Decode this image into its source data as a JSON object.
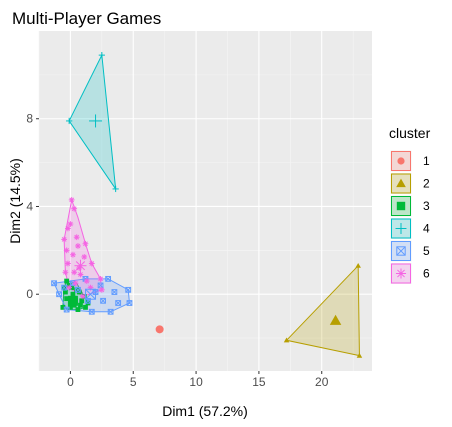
{
  "chart_data": {
    "type": "scatter",
    "title": "Multi-Player Games",
    "xlabel": "Dim1 (57.2%)",
    "ylabel": "Dim2 (14.5%)",
    "xlim": [
      -2.5,
      24
    ],
    "ylim": [
      -3.5,
      12
    ],
    "xticks": [
      0,
      5,
      10,
      15,
      20
    ],
    "yticks": [
      0,
      4,
      8
    ],
    "grid": true,
    "legend": {
      "title": "cluster",
      "position": "right"
    },
    "clusters": [
      {
        "name": "1",
        "color": "#F8766D",
        "shape": "circle",
        "points": [
          [
            7.1,
            -1.6
          ]
        ],
        "hull": [],
        "center": [
          7.1,
          -1.6
        ]
      },
      {
        "name": "2",
        "color": "#B79F00",
        "shape": "triangle",
        "points": [
          [
            17.2,
            -2.1
          ],
          [
            22.9,
            1.3
          ],
          [
            23.0,
            -2.8
          ]
        ],
        "hull": [
          [
            17.2,
            -2.1
          ],
          [
            22.9,
            1.3
          ],
          [
            23.0,
            -2.8
          ]
        ],
        "center": [
          21.1,
          -1.2
        ]
      },
      {
        "name": "3",
        "color": "#00BA38",
        "shape": "square",
        "points": [
          [
            -0.6,
            -0.6
          ],
          [
            -0.5,
            0.3
          ],
          [
            -0.3,
            0.6
          ],
          [
            0.1,
            0.3
          ],
          [
            0.5,
            0.2
          ],
          [
            1.1,
            -0.1
          ],
          [
            1.4,
            -0.4
          ],
          [
            1.2,
            -0.6
          ],
          [
            0.6,
            -0.7
          ],
          [
            0.0,
            -0.6
          ],
          [
            -0.3,
            -0.2
          ],
          [
            0.2,
            0.0
          ],
          [
            0.4,
            -0.3
          ],
          [
            0.8,
            -0.5
          ],
          [
            -0.1,
            0.4
          ],
          [
            0.3,
            -0.5
          ],
          [
            -0.4,
            0.1
          ],
          [
            0.7,
            0.1
          ],
          [
            0.9,
            -0.3
          ],
          [
            0.0,
            -0.2
          ]
        ],
        "hull": [
          [
            -0.6,
            -0.6
          ],
          [
            -0.5,
            0.3
          ],
          [
            -0.3,
            0.6
          ],
          [
            0.5,
            0.5
          ],
          [
            1.1,
            -0.1
          ],
          [
            1.4,
            -0.4
          ],
          [
            1.2,
            -0.6
          ],
          [
            0.6,
            -0.7
          ],
          [
            0.0,
            -0.7
          ]
        ],
        "center": [
          0.2,
          -0.3
        ]
      },
      {
        "name": "4",
        "color": "#00BFC4",
        "shape": "plus",
        "points": [
          [
            -0.1,
            7.9
          ],
          [
            2.5,
            10.9
          ],
          [
            3.6,
            4.8
          ]
        ],
        "hull": [
          [
            -0.1,
            7.9
          ],
          [
            2.5,
            10.9
          ],
          [
            3.6,
            4.8
          ]
        ],
        "center": [
          2.0,
          7.9
        ]
      },
      {
        "name": "5",
        "color": "#619CFF",
        "shape": "square-cross",
        "points": [
          [
            -1.3,
            0.5
          ],
          [
            1.2,
            0.7
          ],
          [
            3.0,
            0.7
          ],
          [
            4.6,
            0.2
          ],
          [
            4.7,
            -0.4
          ],
          [
            3.2,
            -0.8
          ],
          [
            1.7,
            -0.8
          ],
          [
            -0.3,
            -0.7
          ],
          [
            -0.9,
            0.0
          ],
          [
            0.6,
            0.2
          ],
          [
            2.0,
            0.1
          ],
          [
            2.6,
            -0.3
          ],
          [
            1.4,
            -0.3
          ],
          [
            3.8,
            -0.4
          ],
          [
            0.2,
            0.5
          ],
          [
            -0.5,
            0.3
          ],
          [
            2.4,
            0.4
          ],
          [
            3.5,
            0.1
          ]
        ],
        "hull": [
          [
            -1.3,
            0.5
          ],
          [
            1.2,
            0.7
          ],
          [
            3.0,
            0.7
          ],
          [
            4.6,
            0.2
          ],
          [
            4.7,
            -0.4
          ],
          [
            3.2,
            -0.8
          ],
          [
            1.7,
            -0.8
          ],
          [
            -0.3,
            -0.7
          ],
          [
            -0.9,
            0.0
          ]
        ],
        "center": [
          1.6,
          0.0
        ]
      },
      {
        "name": "6",
        "color": "#F564E3",
        "shape": "asterisk",
        "points": [
          [
            0.1,
            4.3
          ],
          [
            0.3,
            3.9
          ],
          [
            -0.2,
            3.0
          ],
          [
            0.5,
            2.6
          ],
          [
            1.2,
            2.3
          ],
          [
            1.7,
            1.4
          ],
          [
            2.4,
            0.7
          ],
          [
            2.5,
            0.2
          ],
          [
            1.0,
            -0.1
          ],
          [
            -0.1,
            0.3
          ],
          [
            -0.4,
            1.0
          ],
          [
            -0.5,
            2.5
          ],
          [
            0.2,
            1.8
          ],
          [
            0.7,
            1.2
          ],
          [
            1.3,
            0.6
          ],
          [
            0.4,
            0.5
          ],
          [
            0.0,
            3.2
          ],
          [
            1.1,
            1.7
          ],
          [
            0.6,
            2.2
          ],
          [
            -0.2,
            1.4
          ],
          [
            0.8,
            0.9
          ],
          [
            1.6,
            0.3
          ],
          [
            0.3,
            1.0
          ],
          [
            -0.3,
            2.0
          ]
        ],
        "hull": [
          [
            0.1,
            4.3
          ],
          [
            0.6,
            3.5
          ],
          [
            1.2,
            2.3
          ],
          [
            1.7,
            1.4
          ],
          [
            2.4,
            0.7
          ],
          [
            2.5,
            0.2
          ],
          [
            1.0,
            -0.1
          ],
          [
            -0.1,
            0.3
          ],
          [
            -0.4,
            1.0
          ],
          [
            -0.5,
            2.5
          ]
        ],
        "center": [
          0.8,
          1.3
        ]
      }
    ]
  }
}
